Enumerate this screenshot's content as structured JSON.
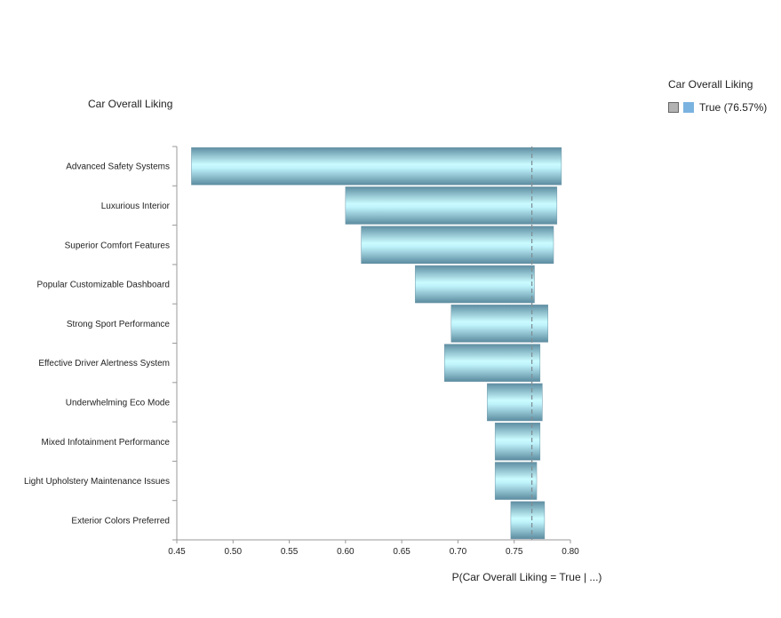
{
  "chart_data": {
    "type": "bar",
    "orientation": "horizontal",
    "title": "Car Overall Liking",
    "xlabel": "P(Car Overall Liking = True | ...)",
    "ylabel": "",
    "xlim": [
      0.45,
      0.8
    ],
    "xticks": [
      "0.45",
      "0.50",
      "0.55",
      "0.60",
      "0.65",
      "0.70",
      "0.75",
      "0.80"
    ],
    "reference_value": 0.7657,
    "legend": {
      "title": "Car Overall Liking",
      "entries": [
        "True (76.57%)"
      ]
    },
    "categories": [
      "Advanced Safety Systems",
      "Luxurious Interior",
      "Superior Comfort Features",
      "Popular Customizable Dashboard",
      "Strong Sport Performance",
      "Effective Driver Alertness System",
      "Underwhelming Eco Mode",
      "Mixed Infotainment Performance",
      "Light Upholstery Maintenance Issues",
      "Exterior Colors Preferred"
    ],
    "series": [
      {
        "name": "True",
        "low": [
          0.463,
          0.6,
          0.614,
          0.662,
          0.694,
          0.688,
          0.726,
          0.733,
          0.733,
          0.747
        ],
        "high": [
          0.792,
          0.788,
          0.785,
          0.768,
          0.78,
          0.773,
          0.775,
          0.773,
          0.77,
          0.777
        ]
      }
    ]
  }
}
